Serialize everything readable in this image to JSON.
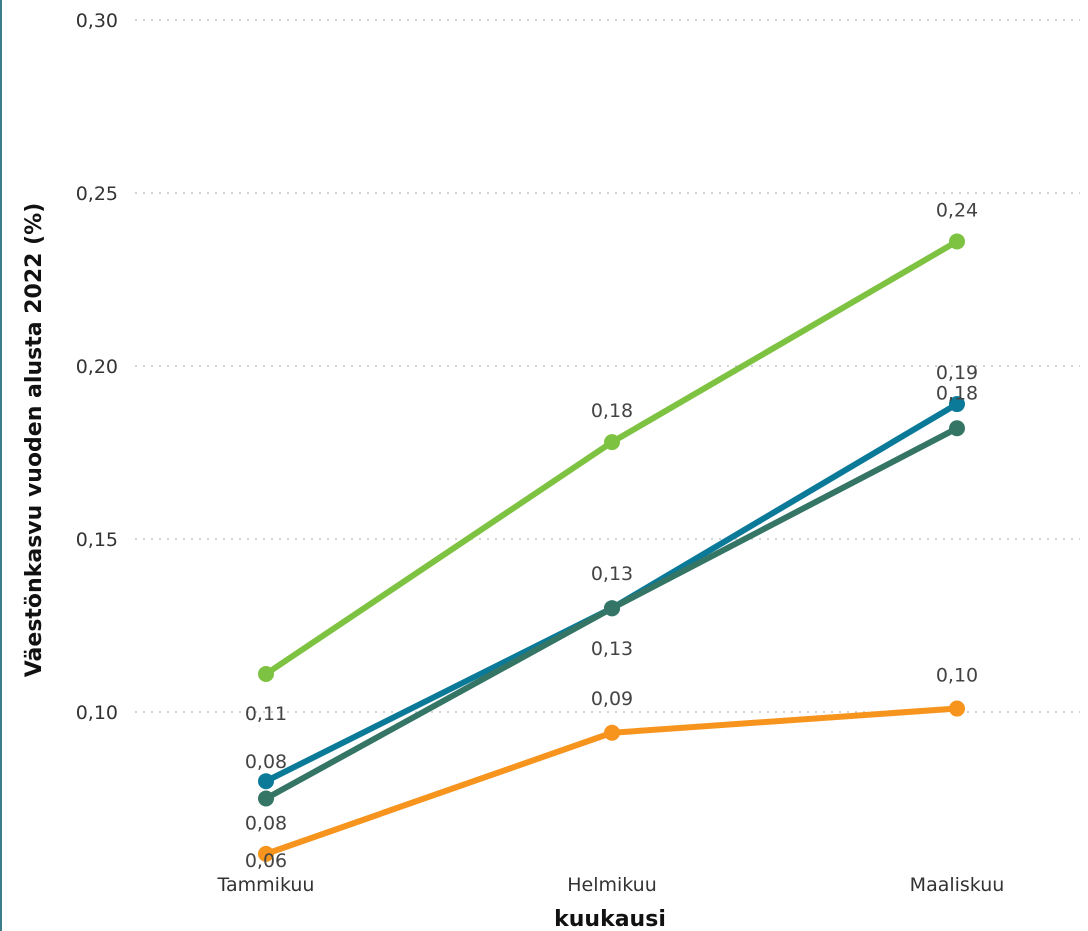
{
  "chart_data": {
    "type": "line",
    "categories": [
      "Tammikuu",
      "Helmikuu",
      "Maaliskuu"
    ],
    "ylabel": "Väestönkasvu vuoden alusta 2022 (%)",
    "xlabel": "kuukausi",
    "ylim": [
      0.06,
      0.3
    ],
    "yticks": [
      0.1,
      0.15,
      0.2,
      0.25,
      0.3
    ],
    "ytick_labels": [
      "0,10",
      "0,15",
      "0,20",
      "0,25",
      "0,30"
    ],
    "grid": "horizontal dotted",
    "series": [
      {
        "color": "#7ec242",
        "values": [
          0.111,
          0.178,
          0.236
        ],
        "labels": [
          "0,11",
          "0,18",
          "0,24"
        ]
      },
      {
        "color": "#0b7a99",
        "values": [
          0.08,
          0.13,
          0.189
        ],
        "labels": [
          "0,08",
          "0,13",
          "0,19"
        ]
      },
      {
        "color": "#357566",
        "values": [
          0.075,
          0.13,
          0.182
        ],
        "labels": [
          "0,08",
          "0,13",
          "0,18"
        ]
      },
      {
        "color": "#f7941d",
        "values": [
          0.059,
          0.094,
          0.101
        ],
        "labels": [
          "0,06",
          "0,09",
          "0,10"
        ]
      }
    ]
  }
}
